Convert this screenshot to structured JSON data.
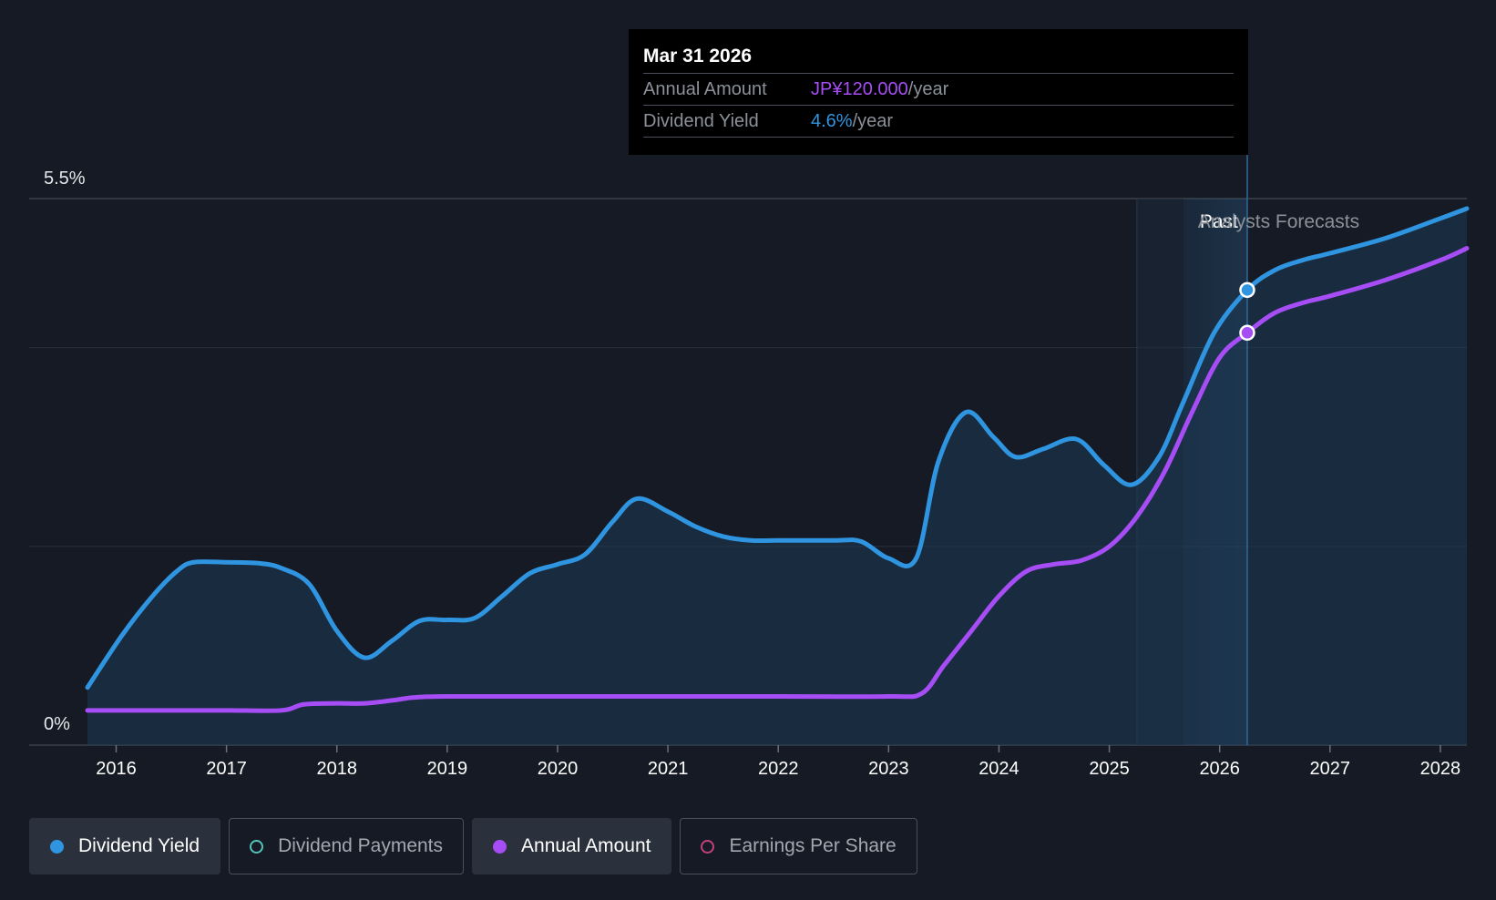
{
  "chart_data": {
    "type": "line",
    "title": "",
    "y_axis": {
      "top_label": "5.5%",
      "bottom_label": "0%",
      "ylim": [
        0,
        5.5
      ]
    },
    "x_ticks": [
      "2016",
      "2017",
      "2018",
      "2019",
      "2020",
      "2021",
      "2022",
      "2023",
      "2024",
      "2025",
      "2026",
      "2027",
      "2028"
    ],
    "x_tick_values": [
      2016,
      2017,
      2018,
      2019,
      2020,
      2021,
      2022,
      2023,
      2024,
      2025,
      2026,
      2027,
      2028
    ],
    "xlim": [
      2015.74,
      2028.24
    ],
    "region_labels": {
      "past": "Past",
      "forecast": "Analysts Forecasts"
    },
    "past_boundary": 2025.25,
    "forecast_start": 2025.67,
    "series": [
      {
        "name": "Dividend Yield",
        "color": "#2f95e0",
        "x": [
          2015.74,
          2016.05,
          2016.33,
          2016.55,
          2016.7,
          2017.0,
          2017.3,
          2017.5,
          2017.75,
          2018.0,
          2018.25,
          2018.5,
          2018.75,
          2019.0,
          2019.25,
          2019.5,
          2019.75,
          2020.0,
          2020.25,
          2020.5,
          2020.72,
          2021.0,
          2021.25,
          2021.5,
          2021.75,
          2022.0,
          2022.5,
          2022.75,
          2023.0,
          2023.25,
          2023.45,
          2023.7,
          2023.95,
          2024.15,
          2024.4,
          2024.7,
          2024.95,
          2025.2,
          2025.45,
          2025.67,
          2025.95,
          2026.25,
          2026.5,
          2026.75,
          2027.0,
          2027.5,
          2028.0,
          2028.24
        ],
        "y": [
          0.58,
          1.1,
          1.5,
          1.75,
          1.84,
          1.84,
          1.83,
          1.78,
          1.62,
          1.15,
          0.88,
          1.05,
          1.25,
          1.26,
          1.28,
          1.5,
          1.73,
          1.82,
          1.92,
          2.25,
          2.48,
          2.35,
          2.2,
          2.1,
          2.06,
          2.06,
          2.06,
          2.05,
          1.88,
          1.88,
          2.85,
          3.35,
          3.1,
          2.9,
          2.98,
          3.08,
          2.82,
          2.62,
          2.9,
          3.45,
          4.15,
          4.58,
          4.78,
          4.88,
          4.95,
          5.1,
          5.3,
          5.4
        ]
      },
      {
        "name": "Annual Amount",
        "color": "#a64df5",
        "x": [
          2015.74,
          2016.5,
          2017.0,
          2017.5,
          2017.7,
          2018.0,
          2018.25,
          2018.5,
          2018.7,
          2019.0,
          2020.0,
          2021.0,
          2022.0,
          2023.0,
          2023.3,
          2023.5,
          2023.75,
          2024.0,
          2024.25,
          2024.5,
          2024.75,
          2025.0,
          2025.25,
          2025.5,
          2025.75,
          2026.0,
          2026.25,
          2026.5,
          2026.75,
          2027.0,
          2027.5,
          2028.0,
          2028.24
        ],
        "y": [
          0.35,
          0.35,
          0.35,
          0.35,
          0.41,
          0.42,
          0.42,
          0.45,
          0.48,
          0.49,
          0.49,
          0.49,
          0.49,
          0.49,
          0.52,
          0.8,
          1.15,
          1.5,
          1.75,
          1.82,
          1.86,
          2.0,
          2.3,
          2.75,
          3.35,
          3.9,
          4.15,
          4.35,
          4.45,
          4.52,
          4.68,
          4.88,
          5.0
        ]
      }
    ],
    "highlight_x": 2026.25,
    "highlight_points": [
      {
        "series": "Dividend Yield",
        "x": 2026.25,
        "y": 4.58
      },
      {
        "series": "Annual Amount",
        "x": 2026.25,
        "y": 4.15
      }
    ]
  },
  "tooltip": {
    "date": "Mar 31 2026",
    "rows": [
      {
        "label": "Annual Amount",
        "value": "JP¥120.000",
        "unit": "/year"
      },
      {
        "label": "Dividend Yield",
        "value": "4.6%",
        "unit": "/year"
      }
    ]
  },
  "legend": [
    {
      "label": "Dividend Yield",
      "active": true,
      "color": "#2f95e0",
      "filled": true
    },
    {
      "label": "Dividend Payments",
      "active": false,
      "color": "#56c2b9",
      "filled": false
    },
    {
      "label": "Annual Amount",
      "active": true,
      "color": "#a64df5",
      "filled": true
    },
    {
      "label": "Earnings Per Share",
      "active": false,
      "color": "#c2417d",
      "filled": false
    }
  ]
}
